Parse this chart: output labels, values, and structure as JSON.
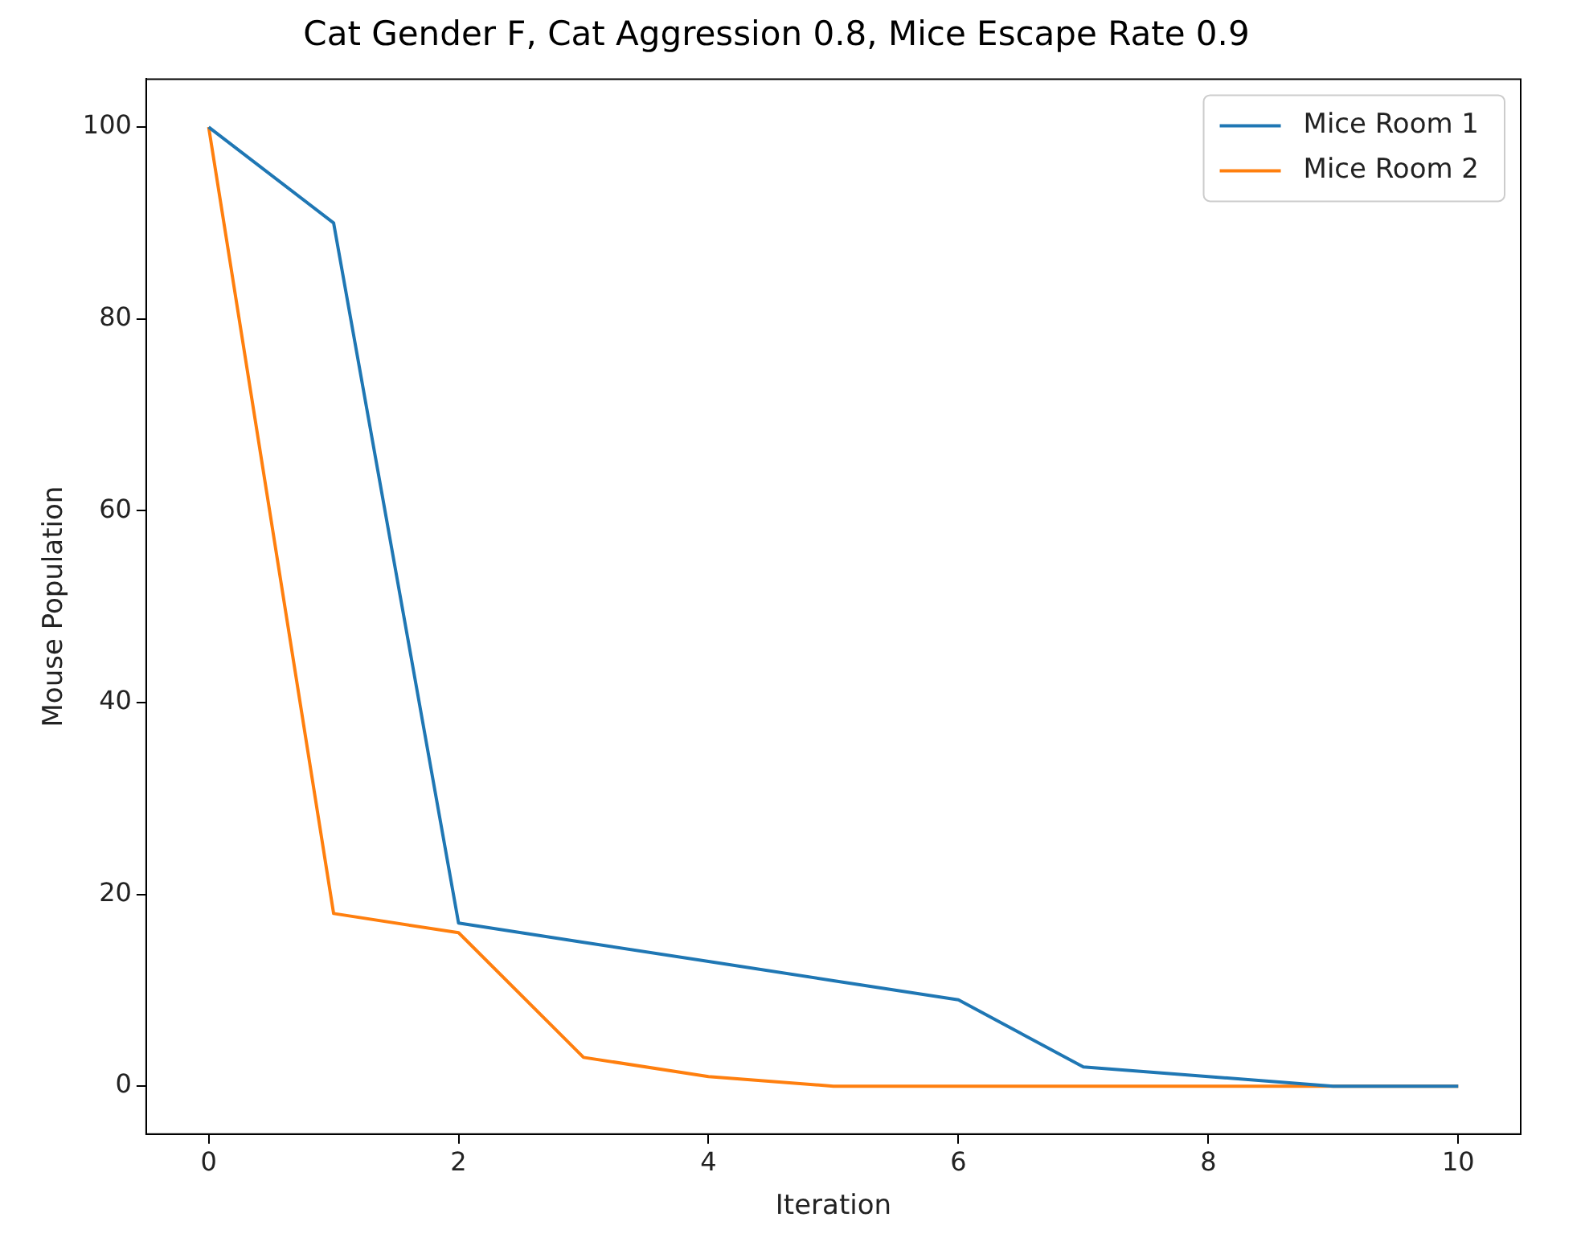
{
  "chart_data": {
    "type": "line",
    "title": "Cat Gender F, Cat Aggression 0.8, Mice Escape Rate 0.9",
    "xlabel": "Iteration",
    "ylabel": "Mouse Population",
    "x": [
      0,
      1,
      2,
      3,
      4,
      5,
      6,
      7,
      8,
      9,
      10
    ],
    "series": [
      {
        "name": "Mice Room 1",
        "color": "#1f77b4",
        "values": [
          100,
          90,
          17,
          15,
          13,
          11,
          9,
          2,
          1,
          0,
          0
        ]
      },
      {
        "name": "Mice Room 2",
        "color": "#ff7f0e",
        "values": [
          100,
          18,
          16,
          3,
          1,
          0,
          0,
          0,
          0,
          0,
          0
        ]
      }
    ],
    "xlim": [
      -0.5,
      10.5
    ],
    "xticks": [
      0,
      2,
      4,
      6,
      8,
      10
    ],
    "ylim": [
      -5,
      105
    ],
    "yticks": [
      0,
      20,
      40,
      60,
      80,
      100
    ],
    "legend": "top right",
    "grid": false,
    "marker": "none",
    "line_style": "solid"
  }
}
